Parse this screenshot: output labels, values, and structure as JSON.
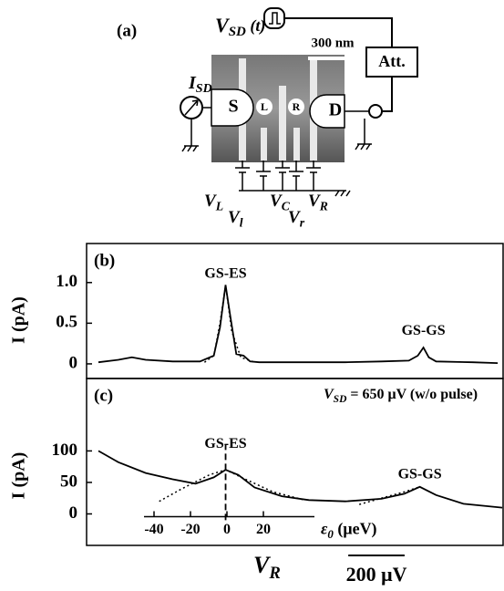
{
  "diagram": {
    "panel": "(a)",
    "vsd": {
      "main": "V",
      "sub": "SD",
      "rest": " (t)"
    },
    "scale": "300 nm",
    "attenuator": "Att.",
    "isd": {
      "main": "I",
      "sub": "SD"
    },
    "source": "S",
    "left_dot": "L",
    "right_dot": "R",
    "drain": "D",
    "gates": [
      {
        "main": "V",
        "sub": "L"
      },
      {
        "main": "V",
        "sub": "l"
      },
      {
        "main": "V",
        "sub": "C"
      },
      {
        "main": "V",
        "sub": "r"
      },
      {
        "main": "V",
        "sub": "R"
      }
    ]
  },
  "chart_data": [
    {
      "type": "line",
      "panel": "(b)",
      "ylabel": "I (pA)",
      "xlim": [
        0,
        1480
      ],
      "ylim": [
        -0.18,
        1.48
      ],
      "yticks": [
        0,
        0.5,
        {
          "value": 1,
          "label": "1.0"
        }
      ],
      "x": [
        42,
        113,
        161,
        210,
        306,
        403,
        452,
        474,
        494,
        510,
        532,
        558,
        581,
        613,
        726,
        919,
        1048,
        1145,
        1177,
        1197,
        1216,
        1242,
        1371,
        1461
      ],
      "series": [
        {
          "color": "#000000",
          "style": "solid",
          "values": [
            0.02,
            0.05,
            0.08,
            0.05,
            0.03,
            0.03,
            0.1,
            0.45,
            0.97,
            0.6,
            0.12,
            0.1,
            0.03,
            0.02,
            0.02,
            0.02,
            0.03,
            0.04,
            0.1,
            0.2,
            0.08,
            0.03,
            0.02,
            0.01
          ]
        },
        {
          "color": "#000000",
          "style": "dotted",
          "x": [
            419,
            452,
            474,
            494,
            516,
            548,
            597
          ],
          "values": [
            0.02,
            0.1,
            0.5,
            0.97,
            0.4,
            0.08,
            0.02
          ]
        }
      ],
      "annotations": [
        {
          "text": "GS-ES",
          "x": 494,
          "y": 1.1
        },
        {
          "text": "GS-GS",
          "x": 1197,
          "y": 0.4
        }
      ]
    },
    {
      "type": "line",
      "panel": "(c)",
      "ylabel": "I (pA)",
      "xlabel": {
        "main": "V",
        "sub": "R"
      },
      "xlim": [
        0,
        1480
      ],
      "ylim": [
        -50,
        215
      ],
      "yticks": [
        0,
        50,
        100
      ],
      "note": {
        "main": "V",
        "sub": "SD",
        "rest": " = 650 μV (w/o pulse)"
      },
      "x": [
        42,
        113,
        210,
        306,
        387,
        452,
        494,
        539,
        597,
        694,
        790,
        919,
        1048,
        1129,
        1184,
        1242,
        1339,
        1477
      ],
      "series": [
        {
          "color": "#000000",
          "style": "solid",
          "values": [
            100,
            82,
            65,
            55,
            48,
            58,
            70,
            62,
            42,
            28,
            22,
            20,
            24,
            32,
            43,
            30,
            16,
            10
          ]
        },
        {
          "color": "#000000",
          "style": "dotted",
          "x": [
            258,
            339,
            436,
            494,
            565,
            662,
            775
          ],
          "values": [
            20,
            40,
            62,
            70,
            55,
            35,
            22
          ]
        },
        {
          "color": "#000000",
          "style": "dotted",
          "x": [
            969,
            1048,
            1129,
            1184
          ],
          "values": [
            15,
            25,
            35,
            43
          ]
        }
      ],
      "annotations": [
        {
          "text": "GS-ES",
          "x": 494,
          "y": 110
        },
        {
          "text": "GS-GS",
          "x": 1184,
          "y": 62
        }
      ],
      "marker_line": {
        "x": 494,
        "y": [
          -10,
          110
        ]
      },
      "x2lim": [
        -45.5,
        48
      ],
      "x2ticks": [
        -40,
        -20,
        0,
        20
      ],
      "x2label": {
        "main": "ε",
        "sub": "0",
        "rest": " (μeV)"
      },
      "scale_bar": {
        "value": 200,
        "label": "200 μV"
      }
    }
  ]
}
